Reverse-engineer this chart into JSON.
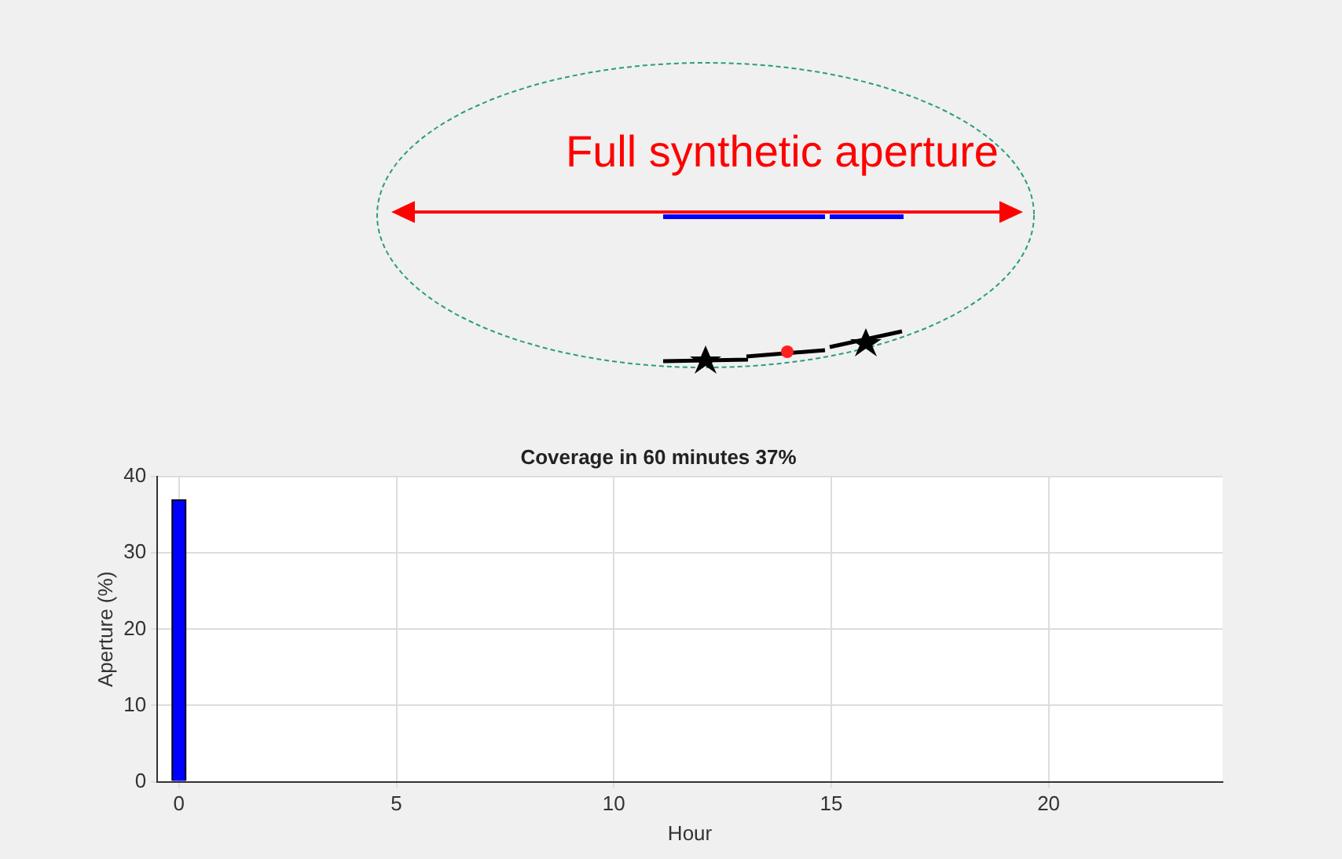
{
  "chart_data": {
    "type": "bar",
    "title": "Coverage in 60 minutes 37%",
    "xlabel": "Hour",
    "ylabel": "Aperture (%)",
    "x": [
      0
    ],
    "values": [
      37
    ],
    "color": "#0000ff",
    "xlim": [
      -0.5,
      24
    ],
    "xticks": [
      0,
      5,
      10,
      15,
      20
    ],
    "ylim": [
      0,
      40
    ],
    "yticks": [
      0,
      10,
      20,
      30,
      40
    ],
    "grid": true,
    "annotations": [
      "Full synthetic aperture"
    ]
  }
}
